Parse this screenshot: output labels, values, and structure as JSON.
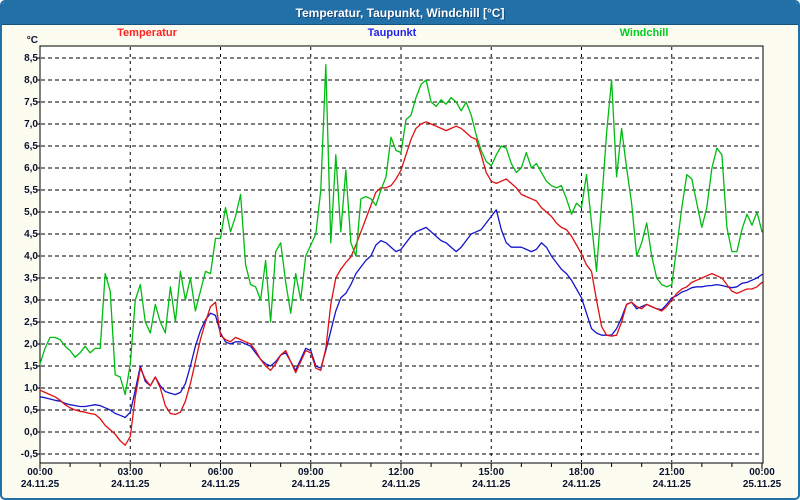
{
  "window": {
    "title": "Temperatur, Taupunkt, Windchill [°C]"
  },
  "legend": {
    "items": [
      {
        "label": "Temperatur",
        "color": "#ff2222"
      },
      {
        "label": "Taupunkt",
        "color": "#2222ee"
      },
      {
        "label": "Windchill",
        "color": "#00cc22"
      }
    ]
  },
  "axis": {
    "y_unit": "°C",
    "y_tick_labels": [
      "8,5",
      "8,0",
      "7,5",
      "7,0",
      "6,5",
      "6,0",
      "5,5",
      "5,0",
      "4,5",
      "4,0",
      "3,5",
      "3,0",
      "2,5",
      "2,0",
      "1,5",
      "1,0",
      "0,5",
      "0,0",
      "-0,5"
    ],
    "x_ticks": [
      {
        "time": "00:00",
        "date": "24.11.25"
      },
      {
        "time": "03:00",
        "date": "24.11.25"
      },
      {
        "time": "06:00",
        "date": "24.11.25"
      },
      {
        "time": "09:00",
        "date": "24.11.25"
      },
      {
        "time": "12:00",
        "date": "24.11.25"
      },
      {
        "time": "15:00",
        "date": "24.11.25"
      },
      {
        "time": "18:00",
        "date": "24.11.25"
      },
      {
        "time": "21:00",
        "date": "24.11.25"
      },
      {
        "time": "00:00",
        "date": "25.11.25"
      }
    ]
  },
  "colors": {
    "titlebar": "#2270a8",
    "window_border": "#2270a8",
    "page_bg": "#fcfcf1",
    "plot_bg": "#ffffff",
    "grid": "#000000"
  },
  "chart_data": {
    "type": "line",
    "title": "Temperatur, Taupunkt, Windchill [°C]",
    "ylabel": "°C",
    "ylim": [
      -0.5,
      8.5
    ],
    "y_tick_step": 0.5,
    "grid": true,
    "x_start_min": 0,
    "x_step_min": 10,
    "x_total_min": 1440,
    "x_major_tick_min": 180,
    "x_minor_tick_min": 60,
    "series": [
      {
        "name": "Temperatur",
        "color": "#dd1111",
        "values": [
          0.95,
          0.9,
          0.85,
          0.8,
          0.72,
          0.62,
          0.55,
          0.5,
          0.47,
          0.45,
          0.42,
          0.4,
          0.3,
          0.15,
          0.05,
          -0.05,
          -0.2,
          -0.3,
          -0.1,
          0.8,
          1.45,
          1.2,
          1.05,
          1.25,
          1.0,
          0.6,
          0.42,
          0.4,
          0.45,
          0.7,
          1.1,
          1.6,
          2.1,
          2.5,
          2.85,
          2.95,
          2.2,
          2.1,
          2.05,
          2.15,
          2.1,
          2.05,
          2.0,
          1.85,
          1.65,
          1.5,
          1.4,
          1.55,
          1.75,
          1.85,
          1.6,
          1.35,
          1.6,
          1.85,
          1.8,
          1.45,
          1.4,
          1.9,
          2.9,
          3.5,
          3.7,
          3.85,
          3.98,
          4.25,
          4.55,
          4.85,
          5.15,
          5.45,
          5.55,
          5.55,
          5.6,
          5.75,
          5.95,
          6.3,
          6.65,
          6.9,
          7.0,
          7.05,
          7.0,
          6.95,
          6.9,
          6.85,
          6.9,
          6.95,
          6.9,
          6.8,
          6.7,
          6.65,
          6.3,
          5.9,
          5.7,
          5.65,
          5.7,
          5.75,
          5.65,
          5.55,
          5.4,
          5.35,
          5.3,
          5.25,
          5.1,
          5.0,
          4.9,
          4.75,
          4.65,
          4.6,
          4.45,
          4.25,
          4.05,
          3.8,
          3.65,
          3.0,
          2.4,
          2.2,
          2.18,
          2.2,
          2.5,
          2.9,
          2.95,
          2.85,
          2.8,
          2.9,
          2.85,
          2.8,
          2.75,
          2.85,
          3.0,
          3.15,
          3.25,
          3.3,
          3.4,
          3.45,
          3.5,
          3.55,
          3.6,
          3.55,
          3.5,
          3.35,
          3.2,
          3.15,
          3.2,
          3.25,
          3.25,
          3.3,
          3.4
        ]
      },
      {
        "name": "Taupunkt",
        "color": "#1515cc",
        "values": [
          0.8,
          0.78,
          0.75,
          0.72,
          0.7,
          0.65,
          0.62,
          0.6,
          0.58,
          0.58,
          0.6,
          0.62,
          0.6,
          0.55,
          0.5,
          0.42,
          0.38,
          0.33,
          0.45,
          0.95,
          1.5,
          1.15,
          1.05,
          1.25,
          1.05,
          0.92,
          0.88,
          0.85,
          0.9,
          1.1,
          1.5,
          1.95,
          2.3,
          2.55,
          2.7,
          2.65,
          2.25,
          2.05,
          2.0,
          2.05,
          2.05,
          2.0,
          1.95,
          1.8,
          1.65,
          1.55,
          1.5,
          1.6,
          1.75,
          1.8,
          1.6,
          1.4,
          1.65,
          1.9,
          1.85,
          1.5,
          1.45,
          1.85,
          2.3,
          2.75,
          3.05,
          3.15,
          3.35,
          3.6,
          3.75,
          3.9,
          4.0,
          4.25,
          4.35,
          4.3,
          4.2,
          4.1,
          4.15,
          4.3,
          4.45,
          4.55,
          4.6,
          4.65,
          4.55,
          4.45,
          4.35,
          4.3,
          4.2,
          4.1,
          4.2,
          4.35,
          4.5,
          4.55,
          4.6,
          4.75,
          4.9,
          5.05,
          4.6,
          4.3,
          4.2,
          4.2,
          4.2,
          4.15,
          4.1,
          4.15,
          4.3,
          4.2,
          4.0,
          3.85,
          3.7,
          3.6,
          3.45,
          3.25,
          3.05,
          2.7,
          2.35,
          2.25,
          2.2,
          2.2,
          2.2,
          2.35,
          2.6,
          2.9,
          2.95,
          2.8,
          2.85,
          2.9,
          2.85,
          2.8,
          2.78,
          2.9,
          3.05,
          3.1,
          3.18,
          3.22,
          3.28,
          3.3,
          3.3,
          3.32,
          3.33,
          3.35,
          3.33,
          3.3,
          3.28,
          3.3,
          3.38,
          3.4,
          3.45,
          3.5,
          3.58
        ]
      },
      {
        "name": "Windchill",
        "color": "#00bb11",
        "values": [
          1.55,
          1.9,
          2.15,
          2.15,
          2.1,
          1.95,
          1.85,
          1.7,
          1.8,
          1.95,
          1.8,
          1.9,
          1.9,
          3.6,
          3.2,
          1.3,
          1.25,
          0.85,
          1.55,
          3.0,
          3.35,
          2.5,
          2.25,
          2.9,
          2.5,
          2.25,
          3.3,
          2.5,
          3.65,
          3.0,
          3.5,
          2.75,
          3.2,
          3.65,
          3.6,
          4.4,
          4.4,
          5.1,
          4.55,
          4.9,
          5.4,
          3.8,
          3.35,
          3.3,
          3.0,
          3.9,
          2.5,
          4.1,
          4.3,
          3.4,
          2.7,
          3.6,
          3.0,
          4.0,
          4.25,
          4.5,
          5.5,
          8.35,
          4.3,
          6.3,
          4.55,
          5.95,
          4.3,
          4.0,
          5.3,
          5.35,
          5.3,
          5.15,
          5.5,
          5.8,
          6.7,
          6.4,
          6.35,
          7.1,
          7.2,
          7.6,
          7.9,
          8.0,
          7.5,
          7.4,
          7.55,
          7.45,
          7.6,
          7.5,
          7.3,
          7.5,
          7.2,
          6.75,
          6.4,
          6.15,
          6.05,
          6.3,
          6.5,
          6.45,
          6.1,
          5.9,
          6.0,
          6.35,
          6.0,
          6.1,
          5.9,
          5.7,
          5.6,
          5.55,
          5.6,
          5.3,
          4.95,
          5.2,
          5.1,
          5.85,
          4.75,
          3.65,
          5.2,
          6.8,
          8.0,
          5.8,
          6.9,
          6.0,
          5.2,
          4.0,
          4.3,
          4.75,
          4.0,
          3.5,
          3.35,
          3.3,
          3.35,
          4.2,
          5.1,
          5.85,
          5.75,
          5.2,
          4.65,
          5.1,
          6.0,
          6.45,
          6.3,
          4.65,
          4.1,
          4.1,
          4.6,
          4.95,
          4.7,
          5.0,
          4.55
        ]
      }
    ]
  }
}
